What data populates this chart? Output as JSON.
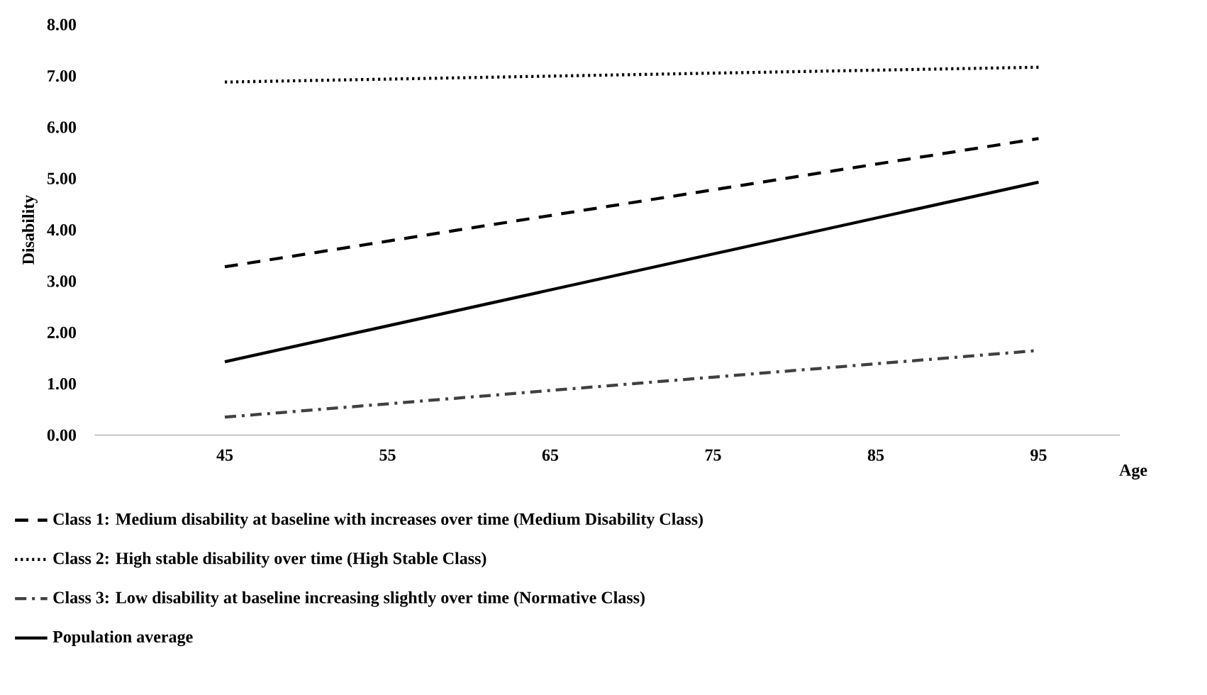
{
  "chart_data": {
    "type": "line",
    "xlabel": "Age",
    "ylabel": "Disability",
    "x": [
      45,
      95
    ],
    "series": [
      {
        "name": "Class 1: Medium disability at baseline with increases over time (Medium Disability Class)",
        "color": "#000000",
        "line_style": "dashed",
        "values": [
          3.28,
          5.78
        ]
      },
      {
        "name": "Class 2: High stable disability over time (High Stable Class)",
        "color": "#000000",
        "line_style": "dotted",
        "values": [
          6.88,
          7.17
        ]
      },
      {
        "name": "Class 3: Low disability at baseline increasing slightly over time (Normative Class)",
        "color": "#404040",
        "line_style": "dashdot",
        "values": [
          0.35,
          1.65
        ]
      },
      {
        "name": "Population average",
        "color": "#000000",
        "line_style": "solid",
        "values": [
          1.43,
          4.93
        ]
      }
    ],
    "xlim": [
      37,
      100
    ],
    "xticks": [
      45,
      55,
      65,
      75,
      85,
      95
    ],
    "ylim": [
      0,
      8
    ],
    "yticks": [
      {
        "value": 0,
        "label": "0.00"
      },
      {
        "value": 1,
        "label": "1.00"
      },
      {
        "value": 2,
        "label": "2.00"
      },
      {
        "value": 3,
        "label": "3.00"
      },
      {
        "value": 4,
        "label": "4.00"
      },
      {
        "value": 5,
        "label": "5.00"
      },
      {
        "value": 6,
        "label": "6.00"
      },
      {
        "value": 7,
        "label": "7.00"
      },
      {
        "value": 8,
        "label": "8.00"
      }
    ],
    "legend": "bottom"
  }
}
